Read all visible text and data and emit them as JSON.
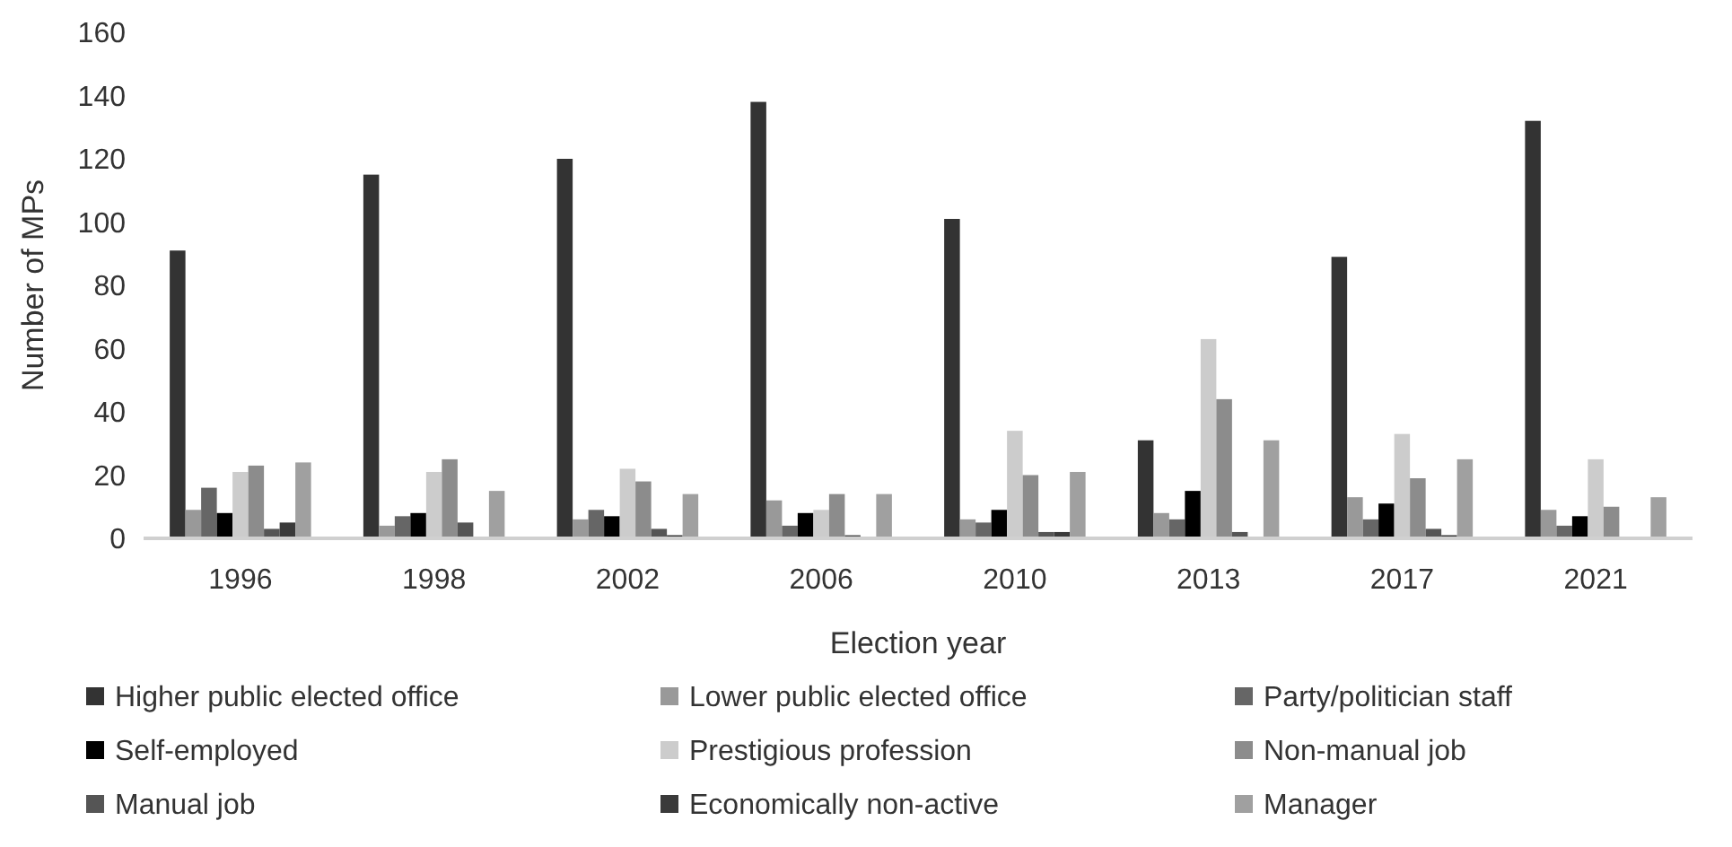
{
  "chart_data": {
    "type": "bar",
    "xlabel": "Election year",
    "ylabel": "Number of MPs",
    "categories": [
      "1996",
      "1998",
      "2002",
      "2006",
      "2010",
      "2013",
      "2017",
      "2021"
    ],
    "series": [
      {
        "name": "Higher public elected office",
        "color": "#333333",
        "values": [
          91,
          115,
          120,
          138,
          101,
          31,
          89,
          132
        ]
      },
      {
        "name": "Lower public elected office",
        "color": "#999999",
        "values": [
          9,
          4,
          6,
          12,
          6,
          8,
          13,
          9
        ]
      },
      {
        "name": "Party/politician staff",
        "color": "#666666",
        "values": [
          16,
          7,
          9,
          4,
          5,
          6,
          6,
          4
        ]
      },
      {
        "name": "Self-employed",
        "color": "#000000",
        "values": [
          8,
          8,
          7,
          8,
          9,
          15,
          11,
          7
        ]
      },
      {
        "name": "Prestigious profession",
        "color": "#cccccc",
        "values": [
          21,
          21,
          22,
          9,
          34,
          63,
          33,
          25
        ]
      },
      {
        "name": "Non-manual job",
        "color": "#8c8c8c",
        "values": [
          23,
          25,
          18,
          14,
          20,
          44,
          19,
          10
        ]
      },
      {
        "name": "Manual job",
        "color": "#555555",
        "values": [
          3,
          5,
          3,
          1,
          2,
          2,
          3,
          0
        ]
      },
      {
        "name": "Economically non-active",
        "color": "#3a3a3a",
        "values": [
          5,
          0,
          1,
          0,
          2,
          0,
          1,
          0
        ]
      },
      {
        "name": "Manager",
        "color": "#a0a0a0",
        "values": [
          24,
          15,
          14,
          14,
          21,
          31,
          25,
          13
        ]
      }
    ],
    "ylim": [
      0,
      160
    ],
    "yticks": [
      0,
      20,
      40,
      60,
      80,
      100,
      120,
      140,
      160
    ],
    "grid": false,
    "legend": "bottom"
  }
}
